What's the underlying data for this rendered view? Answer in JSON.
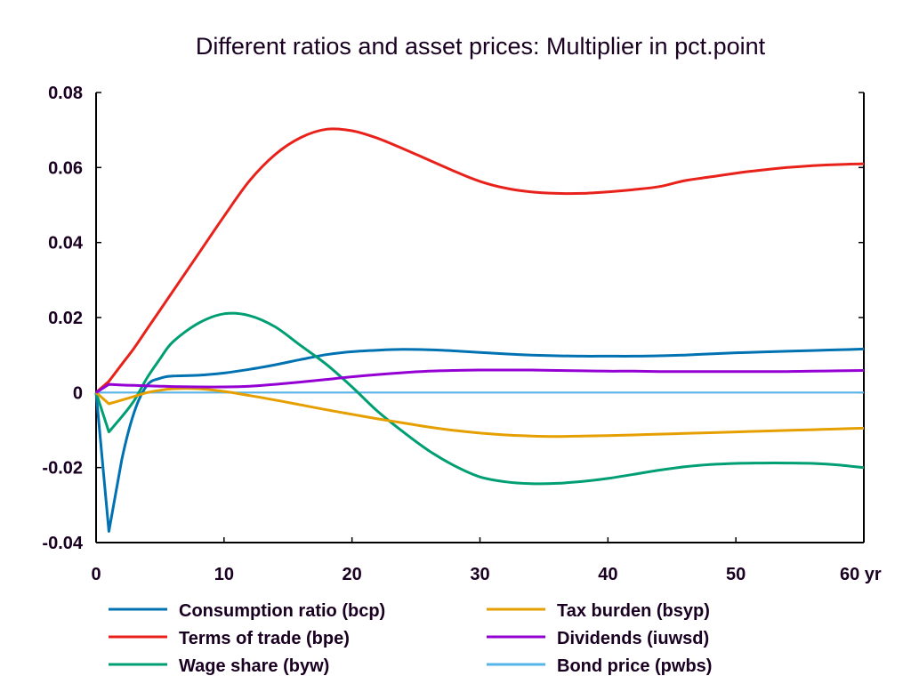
{
  "chart_data": {
    "type": "line",
    "title": "Different ratios and asset prices: Multiplier in pct.point",
    "xlabel": "",
    "ylabel": "",
    "x_unit_label": "yr",
    "xlim": [
      0,
      60
    ],
    "ylim": [
      -0.04,
      0.08
    ],
    "x_ticks": [
      0,
      10,
      20,
      30,
      40,
      50,
      60
    ],
    "x_tick_labels": [
      "0",
      "10",
      "20",
      "30",
      "40",
      "50",
      "60 yr"
    ],
    "y_ticks": [
      -0.04,
      -0.02,
      0,
      0.02,
      0.04,
      0.06,
      0.08
    ],
    "y_tick_labels": [
      "-0.04",
      "-0.02",
      "0",
      "0.02",
      "0.04",
      "0.06",
      "0.08"
    ],
    "grid": false,
    "zero_line": true,
    "legend_position": "bottom",
    "x": [
      0,
      1,
      2,
      3,
      4,
      5,
      6,
      8,
      10,
      12,
      14,
      16,
      18,
      20,
      22,
      24,
      26,
      28,
      30,
      32,
      34,
      36,
      38,
      40,
      42,
      44,
      46,
      48,
      50,
      52,
      54,
      56,
      58,
      60
    ],
    "series": [
      {
        "name": "Consumption ratio (bcp)",
        "color": "#0072b2",
        "values": [
          0,
          -0.037,
          -0.018,
          -0.005,
          0.002,
          0.0038,
          0.0044,
          0.0046,
          0.0052,
          0.0062,
          0.0074,
          0.0088,
          0.0101,
          0.0109,
          0.0113,
          0.0115,
          0.0114,
          0.0111,
          0.0107,
          0.0103,
          0.01,
          0.0098,
          0.0097,
          0.0097,
          0.0097,
          0.0098,
          0.01,
          0.0103,
          0.0106,
          0.0108,
          0.011,
          0.0112,
          0.0114,
          0.0116
        ]
      },
      {
        "name": "Terms of trade (bpe)",
        "color": "#e8221b",
        "values": [
          0,
          0.003,
          0.0075,
          0.012,
          0.017,
          0.022,
          0.027,
          0.037,
          0.047,
          0.0565,
          0.0635,
          0.068,
          0.0702,
          0.0698,
          0.0678,
          0.065,
          0.062,
          0.059,
          0.0563,
          0.0545,
          0.0535,
          0.0531,
          0.0531,
          0.0535,
          0.0541,
          0.0549,
          0.0565,
          0.0575,
          0.0585,
          0.0593,
          0.06,
          0.0605,
          0.0608,
          0.061
        ]
      },
      {
        "name": "Wage share (byw)",
        "color": "#009e73",
        "values": [
          0,
          -0.0105,
          -0.0065,
          -0.002,
          0.004,
          0.009,
          0.0135,
          0.0185,
          0.021,
          0.0205,
          0.0175,
          0.0125,
          0.0075,
          0.0015,
          -0.005,
          -0.0105,
          -0.0155,
          -0.0195,
          -0.0225,
          -0.0238,
          -0.0243,
          -0.0242,
          -0.0237,
          -0.0229,
          -0.0218,
          -0.0207,
          -0.0198,
          -0.0192,
          -0.0189,
          -0.0188,
          -0.0188,
          -0.0189,
          -0.0193,
          -0.02
        ]
      },
      {
        "name": "Tax burden (bsyp)",
        "color": "#e69f00",
        "values": [
          0,
          -0.003,
          -0.002,
          -0.001,
          0.0,
          0.0006,
          0.001,
          0.001,
          0.0003,
          -0.0008,
          -0.002,
          -0.0033,
          -0.0046,
          -0.0058,
          -0.007,
          -0.0081,
          -0.0092,
          -0.0101,
          -0.0108,
          -0.0113,
          -0.0116,
          -0.0117,
          -0.0116,
          -0.0115,
          -0.0113,
          -0.0111,
          -0.0109,
          -0.0107,
          -0.0105,
          -0.0103,
          -0.0101,
          -0.0099,
          -0.0097,
          -0.0095
        ]
      },
      {
        "name": "Dividends (iuwsd)",
        "color": "#9400d3",
        "values": [
          0,
          0.0022,
          0.002,
          0.0019,
          0.0018,
          0.0017,
          0.0016,
          0.0015,
          0.0015,
          0.0017,
          0.0022,
          0.0028,
          0.0035,
          0.0042,
          0.0048,
          0.0053,
          0.0057,
          0.0059,
          0.006,
          0.006,
          0.006,
          0.0059,
          0.0058,
          0.0057,
          0.0057,
          0.0056,
          0.0056,
          0.0056,
          0.0056,
          0.0056,
          0.0056,
          0.0057,
          0.0058,
          0.0059
        ]
      },
      {
        "name": "Bond price (pwbs)",
        "color": "#56b4e9",
        "values": [
          0,
          0,
          0,
          0,
          0,
          0,
          0,
          0,
          0,
          0,
          0,
          0,
          0,
          0,
          0,
          0,
          0,
          0,
          0,
          0,
          0,
          0,
          0,
          0,
          0,
          0,
          0,
          0,
          0,
          0,
          0,
          0,
          0,
          0
        ]
      }
    ]
  },
  "legend": {
    "items": [
      {
        "label": "Consumption ratio (bcp)",
        "color": "#0072b2"
      },
      {
        "label": "Terms of trade (bpe)",
        "color": "#e8221b"
      },
      {
        "label": "Wage share (byw)",
        "color": "#009e73"
      },
      {
        "label": "Tax burden (bsyp)",
        "color": "#e69f00"
      },
      {
        "label": "Dividends (iuwsd)",
        "color": "#9400d3"
      },
      {
        "label": "Bond price (pwbs)",
        "color": "#56b4e9"
      }
    ]
  },
  "colors": {
    "axis": "#000000",
    "zero_line": "#003366",
    "text": "#1a0021"
  }
}
